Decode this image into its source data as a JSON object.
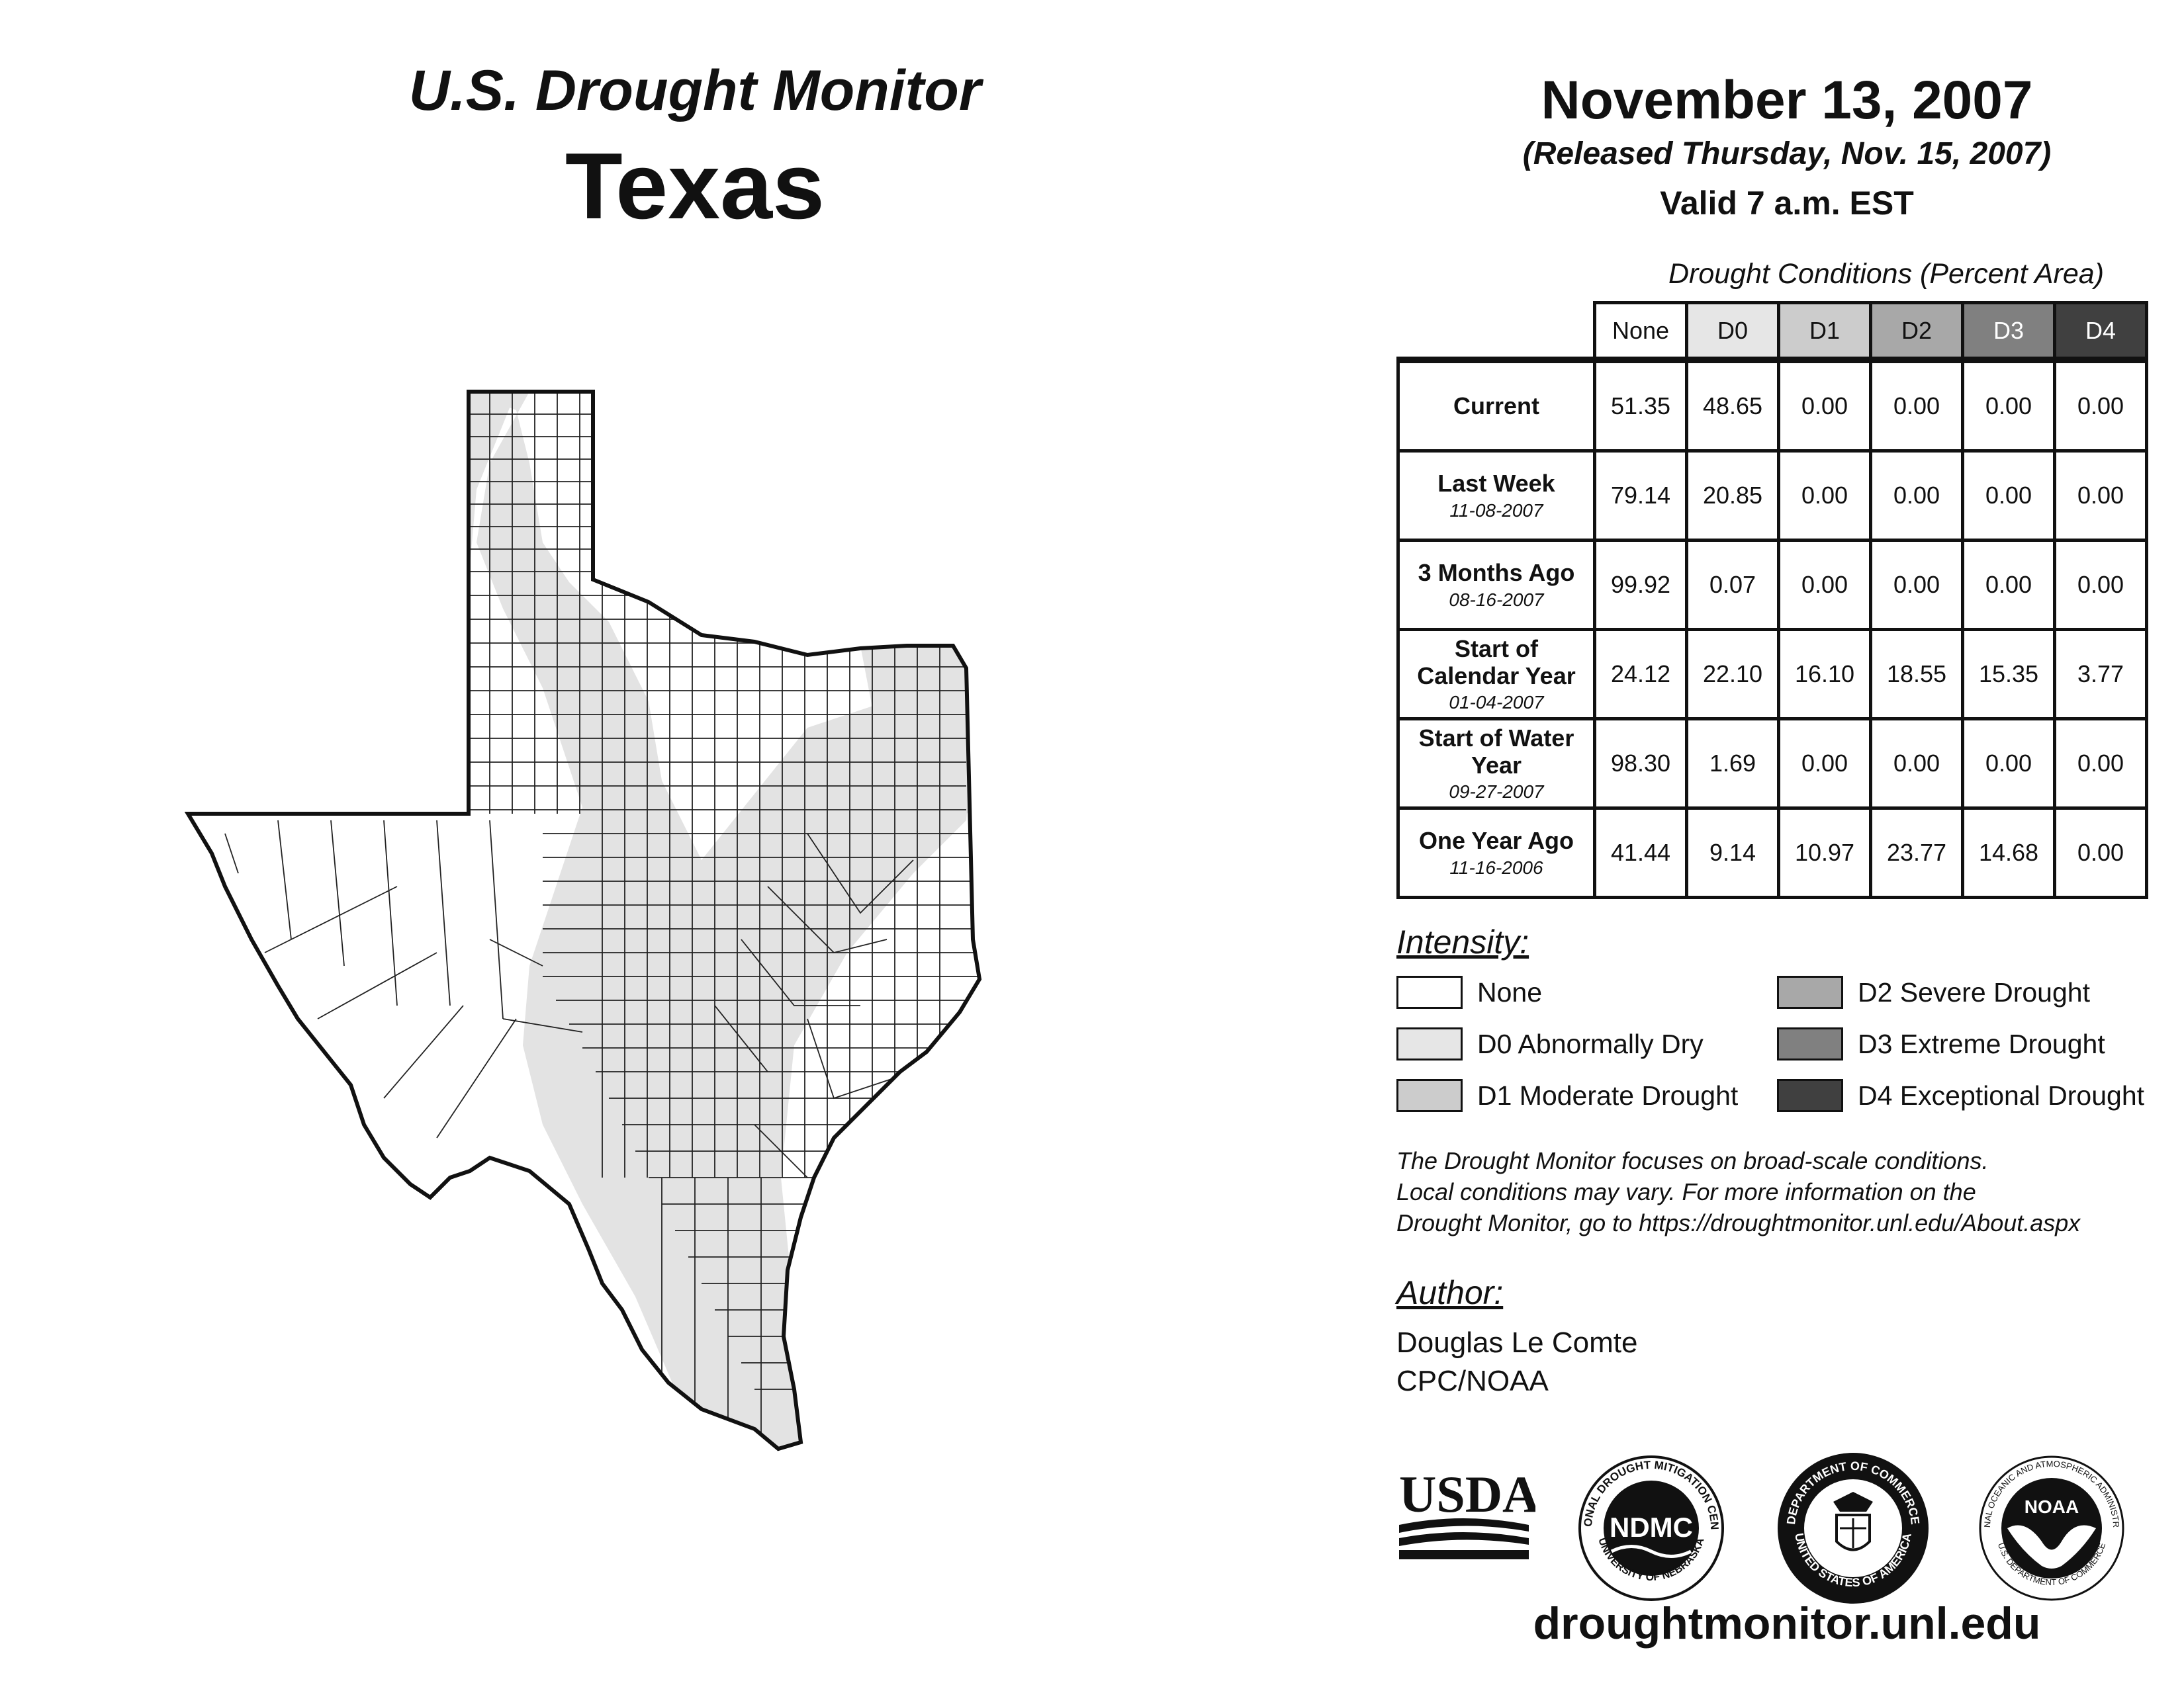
{
  "header": {
    "title": "U.S. Drought Monitor",
    "state": "Texas",
    "date": "November 13, 2007",
    "released": "(Released Thursday, Nov. 15, 2007)",
    "valid": "Valid 7 a.m. EST"
  },
  "table": {
    "title": "Drought Conditions (Percent Area)",
    "columns": [
      "None",
      "D0",
      "D1",
      "D2",
      "D3",
      "D4"
    ],
    "column_colors": [
      "#ffffff",
      "#e6e6e6",
      "#cccccc",
      "#a8a8a8",
      "#808080",
      "#404040"
    ],
    "rows": [
      {
        "label": "Current",
        "date": "",
        "values": [
          "51.35",
          "48.65",
          "0.00",
          "0.00",
          "0.00",
          "0.00"
        ]
      },
      {
        "label": "Last Week",
        "date": "11-08-2007",
        "values": [
          "79.14",
          "20.85",
          "0.00",
          "0.00",
          "0.00",
          "0.00"
        ]
      },
      {
        "label": "3 Months Ago",
        "date": "08-16-2007",
        "values": [
          "99.92",
          "0.07",
          "0.00",
          "0.00",
          "0.00",
          "0.00"
        ]
      },
      {
        "label": "Start of Calendar Year",
        "date": "01-04-2007",
        "values": [
          "24.12",
          "22.10",
          "16.10",
          "18.55",
          "15.35",
          "3.77"
        ]
      },
      {
        "label": "Start of Water Year",
        "date": "09-27-2007",
        "values": [
          "98.30",
          "1.69",
          "0.00",
          "0.00",
          "0.00",
          "0.00"
        ]
      },
      {
        "label": "One Year Ago",
        "date": "11-16-2006",
        "values": [
          "41.44",
          "9.14",
          "10.97",
          "23.77",
          "14.68",
          "0.00"
        ]
      }
    ]
  },
  "legend": {
    "title": "Intensity:",
    "items": [
      {
        "label": "None",
        "color": "#ffffff"
      },
      {
        "label": "D0 Abnormally Dry",
        "color": "#e6e6e6"
      },
      {
        "label": "D1 Moderate Drought",
        "color": "#cccccc"
      },
      {
        "label": "D2 Severe Drought",
        "color": "#a8a8a8"
      },
      {
        "label": "D3 Extreme Drought",
        "color": "#808080"
      },
      {
        "label": "D4 Exceptional Drought",
        "color": "#404040"
      }
    ]
  },
  "note": [
    "The Drought Monitor focuses on broad-scale conditions.",
    "Local conditions may vary. For more information on the",
    "Drought Monitor, go to https://droughtmonitor.unl.edu/About.aspx"
  ],
  "author": {
    "title": "Author:",
    "name": "Douglas Le Comte",
    "org": "CPC/NOAA"
  },
  "logos": {
    "usda": "USDA",
    "ndmc": "NDMC",
    "ndmc_ring": "NATIONAL DROUGHT MITIGATION CENTER",
    "ndmc_bottom": "UNIVERSITY OF NEBRASKA",
    "doc_top": "DEPARTMENT OF COMMERCE",
    "doc_bottom": "UNITED STATES OF AMERICA",
    "noaa": "NOAA",
    "noaa_ring": "NATIONAL OCEANIC AND ATMOSPHERIC ADMINISTRATION",
    "noaa_bottom": "U.S. DEPARTMENT OF COMMERCE"
  },
  "website": "droughtmonitor.unl.edu"
}
